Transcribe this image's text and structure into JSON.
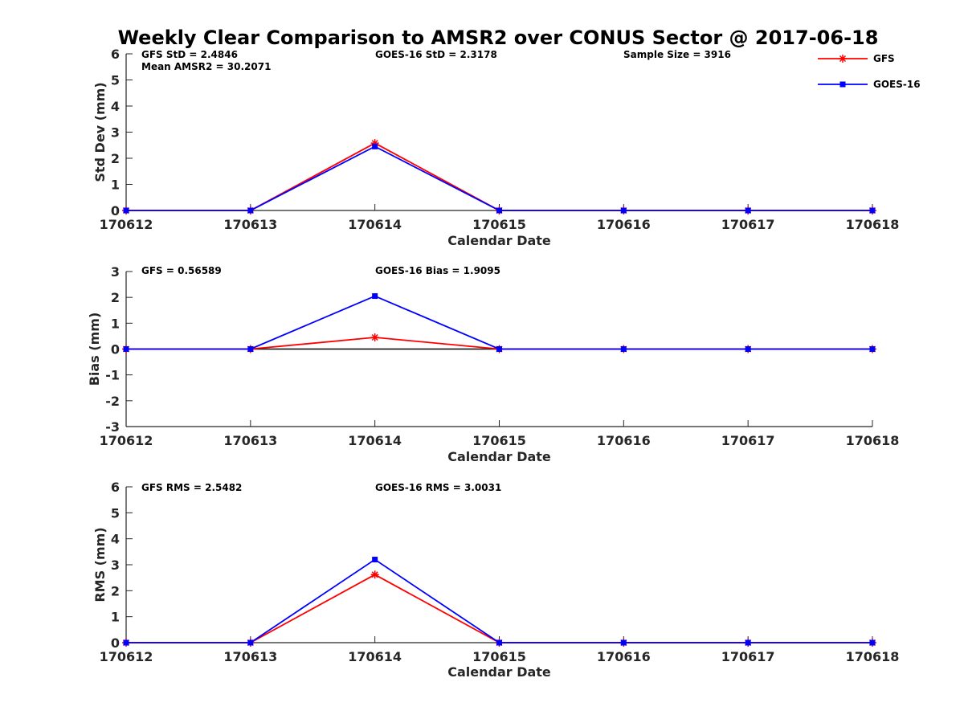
{
  "title": "Weekly Clear Comparison to AMSR2 over CONUS Sector @ 2017-06-18",
  "legend": {
    "position": "top-right",
    "entries": [
      {
        "name": "GFS",
        "color": "#ff0000",
        "marker": "asterisk"
      },
      {
        "name": "GOES-16",
        "color": "#0000ff",
        "marker": "square"
      }
    ]
  },
  "chart_data": [
    {
      "type": "line",
      "categories": [
        "170612",
        "170613",
        "170614",
        "170615",
        "170616",
        "170617",
        "170618"
      ],
      "xlabel": "Calendar Date",
      "ylabel": "Std Dev (mm)",
      "ylim": [
        0,
        6
      ],
      "yticks": [
        "0",
        "1",
        "2",
        "3",
        "4",
        "5",
        "6"
      ],
      "annotations": [
        "GFS StD = 2.4846",
        "Mean AMSR2 = 30.2071",
        "GOES-16 StD = 2.3178",
        "Sample Size = 3916"
      ],
      "zero_line": false,
      "series": [
        {
          "name": "GFS",
          "color": "#ff0000",
          "values": [
            0,
            0,
            2.58,
            0,
            0,
            0,
            0
          ]
        },
        {
          "name": "GOES-16",
          "color": "#0000ff",
          "values": [
            0,
            0,
            2.45,
            0,
            0,
            0,
            0
          ]
        }
      ]
    },
    {
      "type": "line",
      "categories": [
        "170612",
        "170613",
        "170614",
        "170615",
        "170616",
        "170617",
        "170618"
      ],
      "xlabel": "Calendar Date",
      "ylabel": "Bias (mm)",
      "ylim": [
        -3,
        3
      ],
      "yticks": [
        "-3",
        "-2",
        "-1",
        "0",
        "1",
        "2",
        "3"
      ],
      "annotations": [
        "GFS = 0.56589",
        "GOES-16 Bias  = 1.9095"
      ],
      "zero_line": true,
      "series": [
        {
          "name": "GFS",
          "color": "#ff0000",
          "values": [
            0,
            0,
            0.45,
            0,
            0,
            0,
            0
          ]
        },
        {
          "name": "GOES-16",
          "color": "#0000ff",
          "values": [
            0,
            0,
            2.05,
            0,
            0,
            0,
            0
          ]
        }
      ]
    },
    {
      "type": "line",
      "categories": [
        "170612",
        "170613",
        "170614",
        "170615",
        "170616",
        "170617",
        "170618"
      ],
      "xlabel": "Calendar Date",
      "ylabel": "RMS (mm)",
      "ylim": [
        0,
        6
      ],
      "yticks": [
        "0",
        "1",
        "2",
        "3",
        "4",
        "5",
        "6"
      ],
      "annotations": [
        "GFS RMS = 2.5482",
        "GOES-16 RMS = 3.0031"
      ],
      "zero_line": false,
      "series": [
        {
          "name": "GFS",
          "color": "#ff0000",
          "values": [
            0,
            0,
            2.62,
            0,
            0,
            0,
            0
          ]
        },
        {
          "name": "GOES-16",
          "color": "#0000ff",
          "values": [
            0,
            0,
            3.2,
            0,
            0,
            0,
            0
          ]
        }
      ]
    }
  ]
}
